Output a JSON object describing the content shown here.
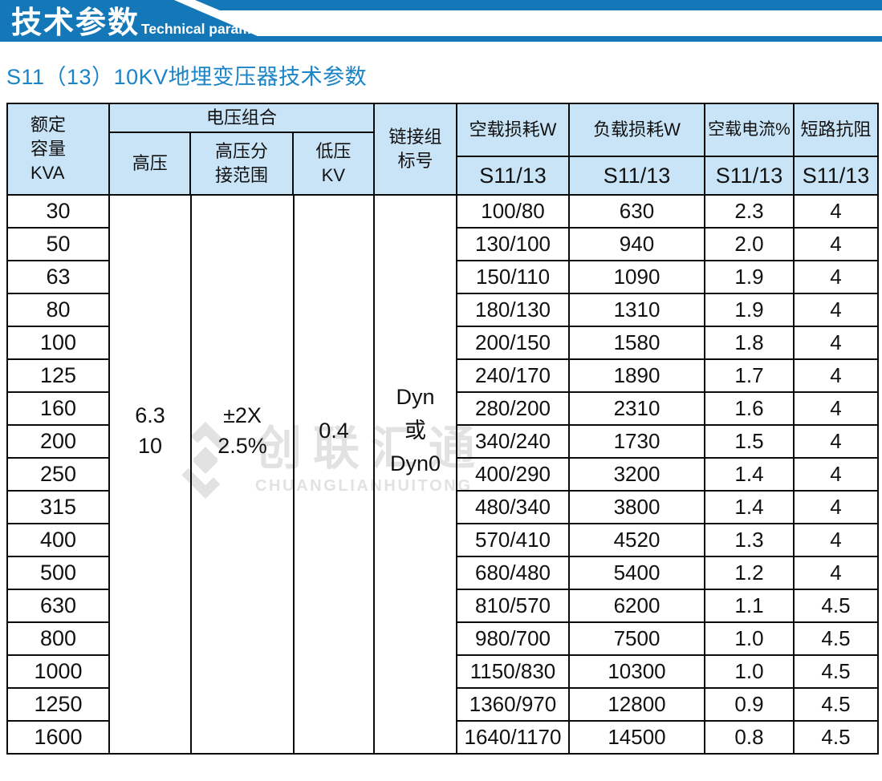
{
  "banner": {
    "title": "技术参数",
    "subtitle_en": "Technical parameter"
  },
  "section_title": "S11（13）10KV地埋变压器技术参数",
  "colors": {
    "banner_blue": "#1477b7",
    "table_header_bg": "#c8e4f6",
    "section_title_blue": "#1b84c6",
    "border_black": "#0b0b0b",
    "watermark_gray": "#e2e2e2"
  },
  "watermark": {
    "logo_icon": "diamond-logo",
    "text_cn": "创联汇通",
    "text_en": "CHUANGLIANHUITONG"
  },
  "table": {
    "header": {
      "capacity": "额定\n容量\nKVA",
      "voltage_group": "电压组合",
      "hv": "高压",
      "hv_tap": "高压分\n接范围",
      "lv": "低压\nKV",
      "vector": "链接组\n标号",
      "no_load_loss": "空载损耗W",
      "load_loss": "负载损耗W",
      "no_load_current": "空载电流%",
      "impedance": "短路抗阻",
      "sub_model": "S11/13"
    },
    "merged": {
      "hv": "6.3\n10",
      "hv_tap": "±2X\n2.5%",
      "lv": "0.4",
      "vector": "Dyn\n或\nDyn0"
    },
    "rows": [
      {
        "kva": "30",
        "no_load_loss": "100/80",
        "load_loss": "630",
        "no_load_current": "2.3",
        "impedance": "4"
      },
      {
        "kva": "50",
        "no_load_loss": "130/100",
        "load_loss": "940",
        "no_load_current": "2.0",
        "impedance": "4"
      },
      {
        "kva": "63",
        "no_load_loss": "150/110",
        "load_loss": "1090",
        "no_load_current": "1.9",
        "impedance": "4"
      },
      {
        "kva": "80",
        "no_load_loss": "180/130",
        "load_loss": "1310",
        "no_load_current": "1.9",
        "impedance": "4"
      },
      {
        "kva": "100",
        "no_load_loss": "200/150",
        "load_loss": "1580",
        "no_load_current": "1.8",
        "impedance": "4"
      },
      {
        "kva": "125",
        "no_load_loss": "240/170",
        "load_loss": "1890",
        "no_load_current": "1.7",
        "impedance": "4"
      },
      {
        "kva": "160",
        "no_load_loss": "280/200",
        "load_loss": "2310",
        "no_load_current": "1.6",
        "impedance": "4"
      },
      {
        "kva": "200",
        "no_load_loss": "340/240",
        "load_loss": "1730",
        "no_load_current": "1.5",
        "impedance": "4"
      },
      {
        "kva": "250",
        "no_load_loss": "400/290",
        "load_loss": "3200",
        "no_load_current": "1.4",
        "impedance": "4"
      },
      {
        "kva": "315",
        "no_load_loss": "480/340",
        "load_loss": "3800",
        "no_load_current": "1.4",
        "impedance": "4"
      },
      {
        "kva": "400",
        "no_load_loss": "570/410",
        "load_loss": "4520",
        "no_load_current": "1.3",
        "impedance": "4"
      },
      {
        "kva": "500",
        "no_load_loss": "680/480",
        "load_loss": "5400",
        "no_load_current": "1.2",
        "impedance": "4"
      },
      {
        "kva": "630",
        "no_load_loss": "810/570",
        "load_loss": "6200",
        "no_load_current": "1.1",
        "impedance": "4.5"
      },
      {
        "kva": "800",
        "no_load_loss": "980/700",
        "load_loss": "7500",
        "no_load_current": "1.0",
        "impedance": "4.5"
      },
      {
        "kva": "1000",
        "no_load_loss": "1150/830",
        "load_loss": "10300",
        "no_load_current": "1.0",
        "impedance": "4.5"
      },
      {
        "kva": "1250",
        "no_load_loss": "1360/970",
        "load_loss": "12800",
        "no_load_current": "0.9",
        "impedance": "4.5"
      },
      {
        "kva": "1600",
        "no_load_loss": "1640/1170",
        "load_loss": "14500",
        "no_load_current": "0.8",
        "impedance": "4.5"
      }
    ]
  }
}
